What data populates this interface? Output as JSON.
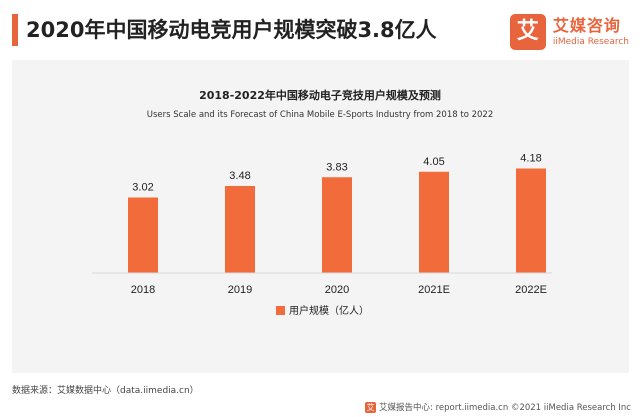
{
  "header": {
    "title": "2020年中国移动电竞用户规模突破3.8亿人",
    "logo_mark": "艾",
    "logo_cn": "艾媒咨询",
    "logo_en": "iiMedia Research"
  },
  "colors": {
    "accent": "#e8643c",
    "bar": "#f26b3a",
    "panel": "#f4f4f4"
  },
  "chart_data": {
    "type": "bar",
    "title": "2018-2022年中国移动电子竞技用户规模及预测",
    "subtitle": "Users Scale and its Forecast of China  Mobile E-Sports Industry from 2018 to 2022",
    "categories": [
      "2018",
      "2019",
      "2020",
      "2021E",
      "2022E"
    ],
    "series": [
      {
        "name": "用户规模（亿人）",
        "values": [
          3.02,
          3.48,
          3.83,
          4.05,
          4.18
        ]
      }
    ],
    "value_labels": [
      "3.02",
      "3.48",
      "3.83",
      "4.05",
      "4.18"
    ],
    "ylim": [
      0,
      5
    ],
    "grid": false,
    "legend_position": "bottom"
  },
  "source_text": "数据来源：艾媒数据中心（data.iimedia.cn）",
  "footer": {
    "icon": "艾",
    "text": "艾媒报告中心: report.iimedia.cn ©2021  iiMedia Research  Inc"
  }
}
